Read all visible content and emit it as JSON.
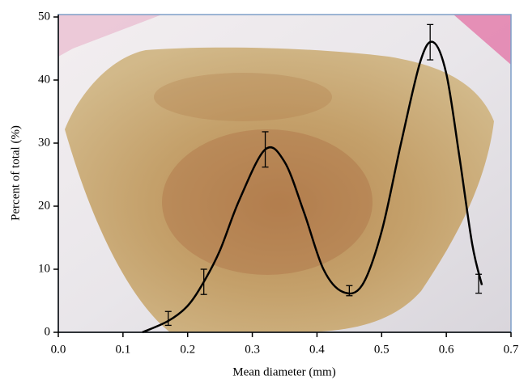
{
  "chart_data": {
    "type": "line",
    "xlabel": "Mean diameter (mm)",
    "ylabel": "Percent of total (%)",
    "xlim": [
      0,
      0.7
    ],
    "ylim": [
      0,
      50
    ],
    "xticks": [
      {
        "value": 0,
        "label": "0.0"
      },
      0.1,
      0.2,
      0.3,
      0.4,
      0.5,
      0.6,
      0.7
    ],
    "yticks": [
      0,
      10,
      20,
      30,
      40,
      50
    ],
    "color": "#000000",
    "x": [
      0.17,
      0.225,
      0.32,
      0.45,
      0.575,
      0.65
    ],
    "values": [
      2.2,
      8,
      29,
      6.6,
      46,
      7.7
    ],
    "errors": [
      1.1,
      2,
      2.8,
      0.8,
      2.8,
      1.5
    ],
    "fit": {
      "x": [
        0.13,
        0.17,
        0.2,
        0.225,
        0.25,
        0.28,
        0.32,
        0.35,
        0.38,
        0.41,
        0.44,
        0.47,
        0.5,
        0.53,
        0.56,
        0.58,
        0.6,
        0.62,
        0.64,
        0.655
      ],
      "values": [
        0,
        1.8,
        4.2,
        8,
        13,
        21,
        29,
        27,
        19,
        10,
        6.4,
        7.5,
        16,
        30,
        43,
        46,
        41,
        28,
        14,
        7.5
      ]
    }
  }
}
